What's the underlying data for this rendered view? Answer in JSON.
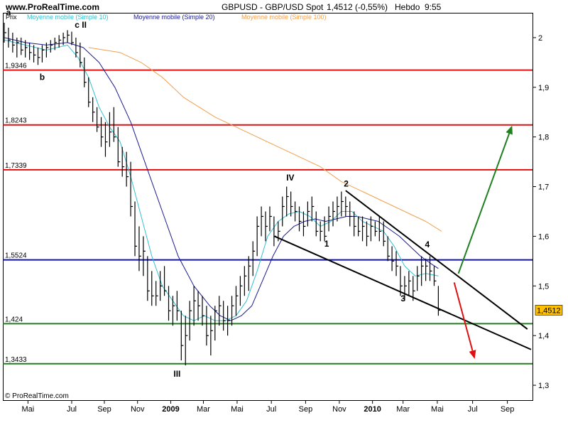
{
  "header": {
    "site": "www.ProRealTime.com",
    "instrument": "GBPUSD - GBP/USD Spot",
    "quote": "1,4512 (-0,55%)",
    "timeframe": "Hebdo",
    "time": "9:55"
  },
  "footer": {
    "copyright": "© ProRealTime.com"
  },
  "colors": {
    "price": "#000000",
    "ma10": "#35c0d0",
    "ma20": "#1a1a90",
    "ma100": "#f0a050",
    "resistance": "#e01010",
    "pivot": "#1010c0",
    "support": "#208020",
    "up_arrow": "#208020",
    "down_arrow": "#e01010",
    "price_badge": "#ffc000"
  },
  "chart_data": {
    "type": "line",
    "legend": {
      "price": "Prix",
      "ma10": "Moyenne mobile (Simple 10)",
      "ma20": "Moyenne mobile (Simple 20)",
      "ma100": "Moyenne mobile (Simple 100)"
    },
    "ylim": [
      1.27,
      2.05
    ],
    "x_ticks": [
      {
        "label": "Mai",
        "t": 0.045
      },
      {
        "label": "Jul",
        "t": 0.128
      },
      {
        "label": "Sep",
        "t": 0.19
      },
      {
        "label": "Nov",
        "t": 0.253
      },
      {
        "label": "2009",
        "t": 0.316,
        "bold": true
      },
      {
        "label": "Mar",
        "t": 0.378
      },
      {
        "label": "Mai",
        "t": 0.442
      },
      {
        "label": "Jul",
        "t": 0.507
      },
      {
        "label": "Sep",
        "t": 0.572
      },
      {
        "label": "Nov",
        "t": 0.636
      },
      {
        "label": "2010",
        "t": 0.699,
        "bold": true
      },
      {
        "label": "Mar",
        "t": 0.757
      },
      {
        "label": "Mai",
        "t": 0.822
      },
      {
        "label": "Jul",
        "t": 0.889
      },
      {
        "label": "Sep",
        "t": 0.955
      }
    ],
    "y_ticks": [
      {
        "label": "2",
        "v": 2.0
      },
      {
        "label": "1,9",
        "v": 1.9
      },
      {
        "label": "1,8",
        "v": 1.8
      },
      {
        "label": "1,7",
        "v": 1.7
      },
      {
        "label": "1,6",
        "v": 1.6
      },
      {
        "label": "1,5",
        "v": 1.5
      },
      {
        "label": "1,4",
        "v": 1.4
      },
      {
        "label": "1,3",
        "v": 1.3
      }
    ],
    "last_price": {
      "label": "1,4512",
      "v": 1.4512
    },
    "levels": [
      {
        "label": "1,9346",
        "v": 1.9346,
        "kind": "resistance"
      },
      {
        "label": "1,8243",
        "v": 1.8243,
        "kind": "resistance"
      },
      {
        "label": "1,7339",
        "v": 1.7339,
        "kind": "resistance"
      },
      {
        "label": "1,5524",
        "v": 1.5524,
        "kind": "pivot"
      },
      {
        "label": "1,424",
        "v": 1.424,
        "kind": "support"
      },
      {
        "label": "1,3433",
        "v": 1.3433,
        "kind": "support"
      }
    ],
    "price_bars": [
      [
        0.0,
        2.03,
        1.99,
        2.01
      ],
      [
        0.008,
        2.02,
        1.98,
        1.995
      ],
      [
        0.016,
        2.01,
        1.97,
        1.985
      ],
      [
        0.024,
        2.0,
        1.96,
        1.99
      ],
      [
        0.032,
        2.0,
        1.965,
        1.975
      ],
      [
        0.04,
        1.995,
        1.96,
        1.98
      ],
      [
        0.048,
        1.99,
        1.955,
        1.97
      ],
      [
        0.056,
        1.985,
        1.95,
        1.965
      ],
      [
        0.064,
        1.98,
        1.945,
        1.96
      ],
      [
        0.072,
        1.985,
        1.95,
        1.975
      ],
      [
        0.08,
        1.99,
        1.96,
        1.98
      ],
      [
        0.088,
        1.995,
        1.97,
        1.985
      ],
      [
        0.096,
        2.0,
        1.975,
        1.99
      ],
      [
        0.104,
        2.005,
        1.98,
        1.995
      ],
      [
        0.112,
        2.01,
        1.985,
        2.0
      ],
      [
        0.12,
        2.015,
        1.99,
        2.005
      ],
      [
        0.128,
        2.012,
        1.985,
        1.99
      ],
      [
        0.136,
        2.0,
        1.96,
        1.97
      ],
      [
        0.144,
        1.99,
        1.94,
        1.95
      ],
      [
        0.152,
        1.96,
        1.9,
        1.91
      ],
      [
        0.16,
        1.92,
        1.86,
        1.87
      ],
      [
        0.168,
        1.88,
        1.83,
        1.85
      ],
      [
        0.176,
        1.86,
        1.81,
        1.82
      ],
      [
        0.184,
        1.84,
        1.78,
        1.8
      ],
      [
        0.192,
        1.83,
        1.76,
        1.79
      ],
      [
        0.2,
        1.85,
        1.78,
        1.81
      ],
      [
        0.208,
        1.86,
        1.79,
        1.8
      ],
      [
        0.216,
        1.82,
        1.74,
        1.75
      ],
      [
        0.224,
        1.78,
        1.72,
        1.74
      ],
      [
        0.232,
        1.77,
        1.7,
        1.72
      ],
      [
        0.24,
        1.75,
        1.64,
        1.66
      ],
      [
        0.248,
        1.67,
        1.56,
        1.58
      ],
      [
        0.256,
        1.62,
        1.53,
        1.56
      ],
      [
        0.264,
        1.6,
        1.52,
        1.57
      ],
      [
        0.272,
        1.56,
        1.47,
        1.49
      ],
      [
        0.28,
        1.53,
        1.46,
        1.48
      ],
      [
        0.288,
        1.51,
        1.46,
        1.48
      ],
      [
        0.296,
        1.53,
        1.47,
        1.5
      ],
      [
        0.304,
        1.54,
        1.48,
        1.49
      ],
      [
        0.312,
        1.5,
        1.43,
        1.45
      ],
      [
        0.32,
        1.48,
        1.42,
        1.46
      ],
      [
        0.328,
        1.49,
        1.43,
        1.45
      ],
      [
        0.336,
        1.45,
        1.35,
        1.38
      ],
      [
        0.344,
        1.44,
        1.34,
        1.4
      ],
      [
        0.352,
        1.47,
        1.39,
        1.45
      ],
      [
        0.36,
        1.5,
        1.42,
        1.47
      ],
      [
        0.368,
        1.49,
        1.43,
        1.46
      ],
      [
        0.376,
        1.48,
        1.42,
        1.44
      ],
      [
        0.384,
        1.46,
        1.38,
        1.4
      ],
      [
        0.392,
        1.44,
        1.36,
        1.41
      ],
      [
        0.4,
        1.46,
        1.39,
        1.45
      ],
      [
        0.408,
        1.48,
        1.42,
        1.46
      ],
      [
        0.416,
        1.47,
        1.41,
        1.43
      ],
      [
        0.424,
        1.46,
        1.4,
        1.43
      ],
      [
        0.432,
        1.48,
        1.42,
        1.46
      ],
      [
        0.44,
        1.5,
        1.44,
        1.48
      ],
      [
        0.448,
        1.52,
        1.46,
        1.5
      ],
      [
        0.456,
        1.54,
        1.48,
        1.52
      ],
      [
        0.464,
        1.56,
        1.49,
        1.54
      ],
      [
        0.472,
        1.59,
        1.52,
        1.57
      ],
      [
        0.48,
        1.64,
        1.56,
        1.62
      ],
      [
        0.488,
        1.66,
        1.6,
        1.64
      ],
      [
        0.496,
        1.65,
        1.59,
        1.62
      ],
      [
        0.504,
        1.66,
        1.61,
        1.64
      ],
      [
        0.512,
        1.64,
        1.58,
        1.6
      ],
      [
        0.52,
        1.63,
        1.59,
        1.61
      ],
      [
        0.528,
        1.68,
        1.62,
        1.66
      ],
      [
        0.536,
        1.7,
        1.64,
        1.68
      ],
      [
        0.544,
        1.69,
        1.64,
        1.66
      ],
      [
        0.552,
        1.67,
        1.63,
        1.65
      ],
      [
        0.56,
        1.66,
        1.61,
        1.63
      ],
      [
        0.568,
        1.65,
        1.6,
        1.62
      ],
      [
        0.576,
        1.67,
        1.62,
        1.65
      ],
      [
        0.584,
        1.68,
        1.63,
        1.66
      ],
      [
        0.592,
        1.65,
        1.6,
        1.61
      ],
      [
        0.6,
        1.63,
        1.59,
        1.61
      ],
      [
        0.608,
        1.64,
        1.59,
        1.6
      ],
      [
        0.616,
        1.66,
        1.61,
        1.64
      ],
      [
        0.624,
        1.67,
        1.62,
        1.65
      ],
      [
        0.632,
        1.68,
        1.63,
        1.66
      ],
      [
        0.64,
        1.69,
        1.64,
        1.67
      ],
      [
        0.648,
        1.68,
        1.64,
        1.66
      ],
      [
        0.656,
        1.67,
        1.62,
        1.64
      ],
      [
        0.664,
        1.65,
        1.6,
        1.62
      ],
      [
        0.672,
        1.64,
        1.6,
        1.61
      ],
      [
        0.68,
        1.64,
        1.59,
        1.62
      ],
      [
        0.688,
        1.63,
        1.58,
        1.6
      ],
      [
        0.696,
        1.64,
        1.59,
        1.62
      ],
      [
        0.704,
        1.63,
        1.6,
        1.61
      ],
      [
        0.712,
        1.64,
        1.59,
        1.61
      ],
      [
        0.72,
        1.63,
        1.58,
        1.59
      ],
      [
        0.728,
        1.6,
        1.55,
        1.56
      ],
      [
        0.736,
        1.58,
        1.53,
        1.55
      ],
      [
        0.744,
        1.57,
        1.52,
        1.54
      ],
      [
        0.752,
        1.54,
        1.48,
        1.5
      ],
      [
        0.76,
        1.52,
        1.47,
        1.5
      ],
      [
        0.768,
        1.53,
        1.48,
        1.51
      ],
      [
        0.776,
        1.52,
        1.47,
        1.49
      ],
      [
        0.784,
        1.54,
        1.49,
        1.52
      ],
      [
        0.792,
        1.56,
        1.5,
        1.54
      ],
      [
        0.8,
        1.555,
        1.51,
        1.54
      ],
      [
        0.808,
        1.56,
        1.51,
        1.53
      ],
      [
        0.816,
        1.54,
        1.5,
        1.51
      ],
      [
        0.824,
        1.5,
        1.44,
        1.451
      ]
    ],
    "ma10": [
      [
        0.0,
        1.995
      ],
      [
        0.04,
        1.985
      ],
      [
        0.08,
        1.975
      ],
      [
        0.12,
        1.985
      ],
      [
        0.14,
        1.96
      ],
      [
        0.16,
        1.92
      ],
      [
        0.18,
        1.86
      ],
      [
        0.2,
        1.82
      ],
      [
        0.22,
        1.79
      ],
      [
        0.24,
        1.72
      ],
      [
        0.26,
        1.64
      ],
      [
        0.28,
        1.56
      ],
      [
        0.3,
        1.5
      ],
      [
        0.32,
        1.47
      ],
      [
        0.34,
        1.44
      ],
      [
        0.36,
        1.43
      ],
      [
        0.38,
        1.44
      ],
      [
        0.4,
        1.43
      ],
      [
        0.42,
        1.43
      ],
      [
        0.44,
        1.44
      ],
      [
        0.46,
        1.47
      ],
      [
        0.48,
        1.53
      ],
      [
        0.5,
        1.6
      ],
      [
        0.52,
        1.63
      ],
      [
        0.54,
        1.645
      ],
      [
        0.56,
        1.65
      ],
      [
        0.58,
        1.64
      ],
      [
        0.6,
        1.62
      ],
      [
        0.62,
        1.63
      ],
      [
        0.64,
        1.65
      ],
      [
        0.66,
        1.65
      ],
      [
        0.68,
        1.63
      ],
      [
        0.7,
        1.62
      ],
      [
        0.72,
        1.61
      ],
      [
        0.74,
        1.58
      ],
      [
        0.76,
        1.54
      ],
      [
        0.78,
        1.52
      ],
      [
        0.8,
        1.525
      ],
      [
        0.824,
        1.52
      ]
    ],
    "ma20": [
      [
        0.0,
        2.0
      ],
      [
        0.04,
        1.99
      ],
      [
        0.08,
        1.985
      ],
      [
        0.12,
        1.99
      ],
      [
        0.15,
        1.98
      ],
      [
        0.18,
        1.95
      ],
      [
        0.21,
        1.9
      ],
      [
        0.24,
        1.83
      ],
      [
        0.27,
        1.74
      ],
      [
        0.3,
        1.65
      ],
      [
        0.33,
        1.56
      ],
      [
        0.36,
        1.5
      ],
      [
        0.39,
        1.46
      ],
      [
        0.41,
        1.44
      ],
      [
        0.43,
        1.43
      ],
      [
        0.45,
        1.44
      ],
      [
        0.47,
        1.46
      ],
      [
        0.49,
        1.51
      ],
      [
        0.51,
        1.56
      ],
      [
        0.53,
        1.6
      ],
      [
        0.55,
        1.62
      ],
      [
        0.57,
        1.63
      ],
      [
        0.59,
        1.635
      ],
      [
        0.61,
        1.63
      ],
      [
        0.63,
        1.635
      ],
      [
        0.65,
        1.64
      ],
      [
        0.67,
        1.64
      ],
      [
        0.69,
        1.635
      ],
      [
        0.71,
        1.63
      ],
      [
        0.73,
        1.615
      ],
      [
        0.75,
        1.6
      ],
      [
        0.77,
        1.58
      ],
      [
        0.79,
        1.56
      ],
      [
        0.81,
        1.545
      ],
      [
        0.824,
        1.535
      ]
    ],
    "ma100": [
      [
        0.16,
        1.98
      ],
      [
        0.22,
        1.97
      ],
      [
        0.26,
        1.95
      ],
      [
        0.3,
        1.92
      ],
      [
        0.34,
        1.88
      ],
      [
        0.4,
        1.84
      ],
      [
        0.46,
        1.81
      ],
      [
        0.52,
        1.78
      ],
      [
        0.56,
        1.76
      ],
      [
        0.6,
        1.74
      ],
      [
        0.64,
        1.71
      ],
      [
        0.68,
        1.69
      ],
      [
        0.72,
        1.67
      ],
      [
        0.76,
        1.65
      ],
      [
        0.8,
        1.63
      ],
      [
        0.83,
        1.61
      ]
    ],
    "trendlines": [
      {
        "from": [
          0.513,
          1.6
        ],
        "to": [
          1.0,
          1.372
        ]
      },
      {
        "from": [
          0.648,
          1.692
        ],
        "to": [
          0.993,
          1.413
        ]
      }
    ],
    "arrows": [
      {
        "kind": "up_arrow",
        "from": [
          0.862,
          1.525
        ],
        "to": [
          0.964,
          1.823
        ]
      },
      {
        "kind": "down_arrow",
        "from": [
          0.854,
          1.507
        ],
        "to": [
          0.893,
          1.353
        ]
      }
    ],
    "wave_labels": [
      {
        "label": "a",
        "t": 0.008,
        "v": 2.045
      },
      {
        "label": "c II",
        "t": 0.145,
        "v": 2.02
      },
      {
        "label": "b",
        "t": 0.072,
        "v": 1.915
      },
      {
        "label": "IV",
        "t": 0.543,
        "v": 1.712
      },
      {
        "label": "2",
        "t": 0.649,
        "v": 1.7
      },
      {
        "label": "1",
        "t": 0.612,
        "v": 1.579
      },
      {
        "label": "4",
        "t": 0.803,
        "v": 1.578
      },
      {
        "label": "3",
        "t": 0.757,
        "v": 1.469
      },
      {
        "label": "III",
        "t": 0.328,
        "v": 1.317
      }
    ]
  }
}
